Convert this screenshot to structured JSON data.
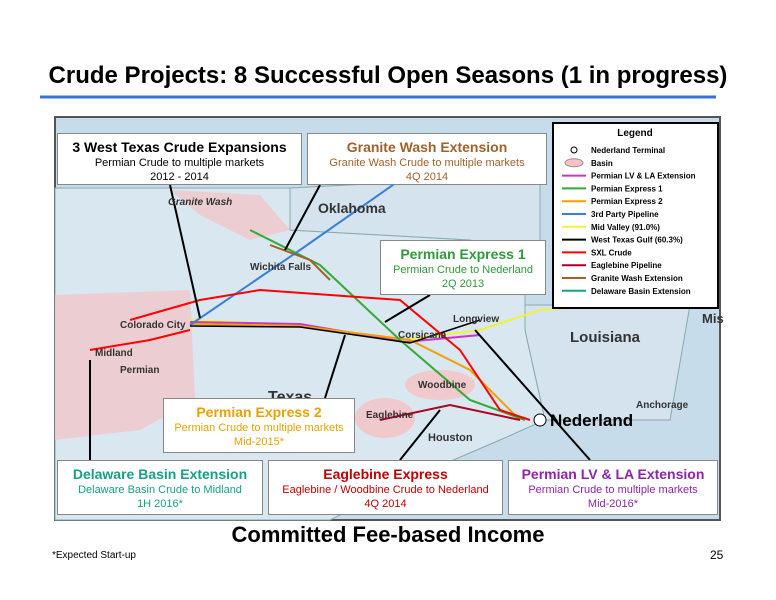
{
  "header": {
    "title": "Crude Projects: 8 Successful Open Seasons (1 in progress)"
  },
  "callouts": [
    {
      "title": "3 West Texas Crude Expansions",
      "color": "#000000",
      "lines": [
        "Permian Crude to multiple markets",
        "2012 - 2014"
      ]
    },
    {
      "title": "Granite Wash Extension",
      "color": "#a0612a",
      "lines": [
        "Granite Wash Crude to multiple markets",
        "4Q 2014"
      ]
    },
    {
      "title": "Permian Express 1",
      "color": "#2e9a3a",
      "lines": [
        "Permian Crude to Nederland",
        "2Q 2013"
      ]
    },
    {
      "title": "Permian Express 2",
      "color": "#e8a200",
      "lines": [
        "Permian Crude to multiple markets",
        "Mid-2015*"
      ]
    },
    {
      "title": "Delaware Basin Extension",
      "color": "#16a085",
      "lines": [
        "Delaware Basin Crude to Midland",
        "1H 2016*"
      ]
    },
    {
      "title": "Eaglebine Express",
      "color": "#c00000",
      "lines": [
        "Eaglebine / Woodbine Crude to Nederland",
        "4Q 2014"
      ]
    },
    {
      "title": "Permian LV & LA Extension",
      "color": "#8e24aa",
      "lines": [
        "Permian Crude to multiple markets",
        "Mid-2016*"
      ]
    }
  ],
  "legend": {
    "title": "Legend",
    "items": [
      {
        "label": "Nederland Terminal",
        "color": "#ffffff",
        "symbol": "point"
      },
      {
        "label": "Basin",
        "color": "#f2c4c8",
        "symbol": "area"
      },
      {
        "label": "Permian LV & LA Extension",
        "color": "#cc33cc",
        "symbol": "line"
      },
      {
        "label": "Permian Express 1",
        "color": "#33aa33",
        "symbol": "line"
      },
      {
        "label": "Permian Express 2",
        "color": "#f0a000",
        "symbol": "line"
      },
      {
        "label": "3rd Party Pipeline",
        "color": "#3a7fd5",
        "symbol": "line"
      },
      {
        "label": "Mid Valley (91.0%)",
        "color": "#f5f03a",
        "symbol": "line"
      },
      {
        "label": "West Texas Gulf (60.3%)",
        "color": "#000000",
        "symbol": "line"
      },
      {
        "label": "SXL Crude",
        "color": "#ff0000",
        "symbol": "line"
      },
      {
        "label": "Eaglebine Pipeline",
        "color": "#b00020",
        "symbol": "line"
      },
      {
        "label": "Granite Wash Extension",
        "color": "#a0612a",
        "symbol": "line"
      },
      {
        "label": "Delaware Basin Extension",
        "color": "#16a085",
        "symbol": "line"
      }
    ]
  },
  "map": {
    "labels": [
      "Granite Wash",
      "Oklahoma",
      "Wichita Falls",
      "Colorado City",
      "Midland",
      "Permian",
      "Texas",
      "Corsicana",
      "Longview",
      "Louisiana",
      "Mis",
      "Woodbine",
      "Eaglebine",
      "Houston",
      "Nederland",
      "Anchorage"
    ]
  },
  "footer": {
    "tagline": "Committed Fee-based Income",
    "footnote": "*Expected Start-up",
    "page_number": "25"
  }
}
